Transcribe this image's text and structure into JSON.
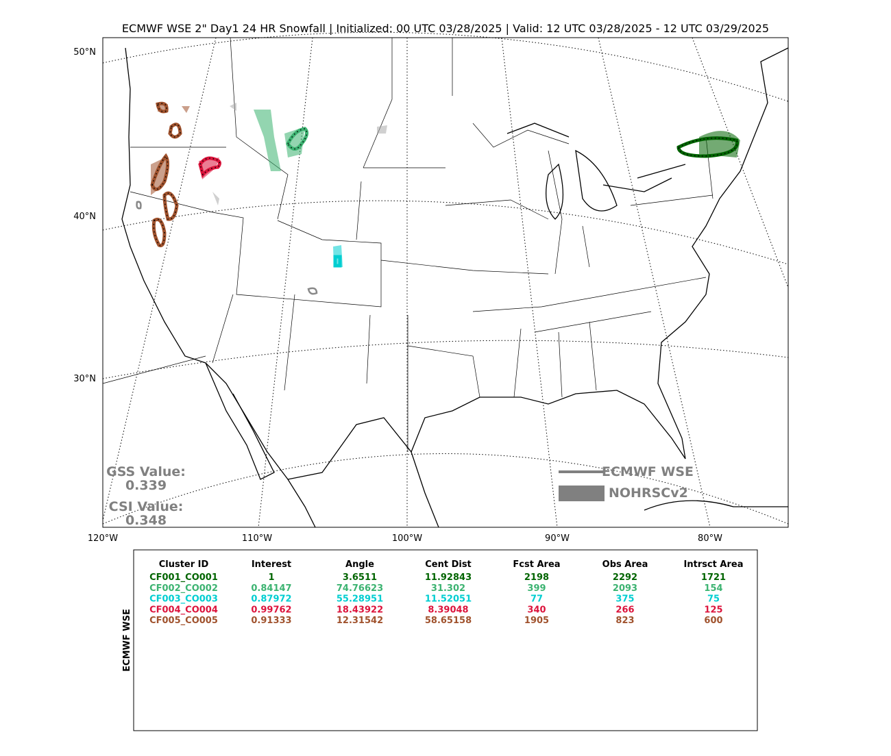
{
  "title": "ECMWF WSE 2\" Day1 24 HR Snowfall | Initialized: 00 UTC 03/28/2025 | Valid: 12 UTC 03/28/2025 - 12 UTC 03/29/2025",
  "map": {
    "lat_labels": [
      "50°N",
      "40°N",
      "30°N"
    ],
    "lon_labels": [
      "120°W",
      "110°W",
      "100°W",
      "90°W",
      "80°W"
    ],
    "legend": [
      "ECMWF WSE",
      "NOHRSCv2"
    ],
    "scores": [
      {
        "label": "GSS Value:",
        "value": 0.339
      },
      {
        "label": "CSI Value:",
        "value": 0.348
      }
    ]
  },
  "table": {
    "side_label": "ECMWF WSE",
    "columns": [
      "Cluster ID",
      "Interest",
      "Angle",
      "Cent Dist",
      "Fcst Area",
      "Obs Area",
      "Intrsct Area"
    ],
    "rows": [
      {
        "color": "#006400",
        "cells": [
          "CF001_CO001",
          1,
          3.6511,
          11.92843,
          2198,
          2292,
          1721
        ]
      },
      {
        "color": "#3cb371",
        "cells": [
          "CF002_CO002",
          0.84147,
          74.76623,
          31.302,
          399,
          2093,
          154
        ]
      },
      {
        "color": "#00ced1",
        "cells": [
          "CF003_CO003",
          0.87972,
          55.28951,
          11.52051,
          77,
          375,
          75
        ]
      },
      {
        "color": "#dc143c",
        "cells": [
          "CF004_CO004",
          0.99762,
          18.43922,
          8.39048,
          340,
          266,
          125
        ]
      },
      {
        "color": "#a0522d",
        "cells": [
          "CF005_CO005",
          0.91333,
          12.31542,
          58.65158,
          1905,
          823,
          600
        ]
      }
    ]
  }
}
